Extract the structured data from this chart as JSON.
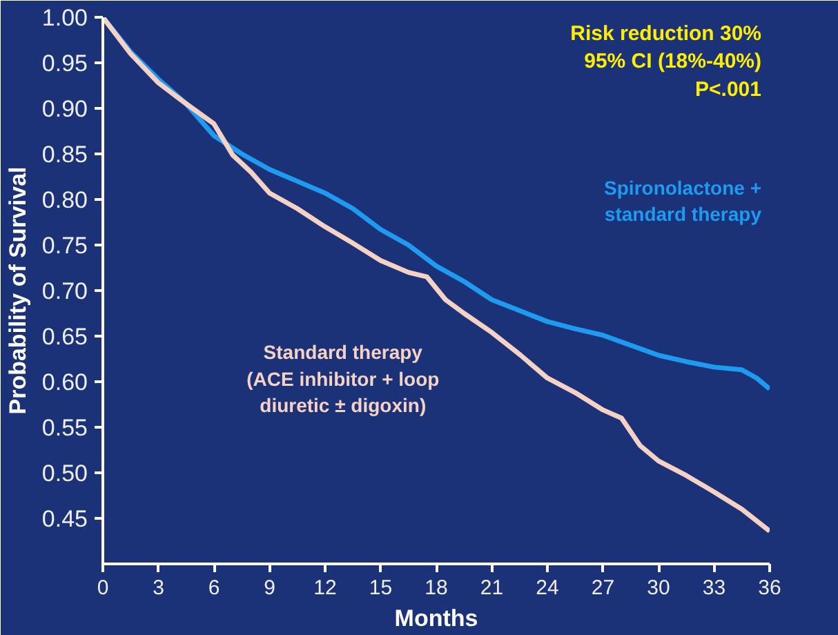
{
  "chart_data": {
    "type": "line",
    "xlabel": "Months",
    "ylabel": "Probability of Survival",
    "annotations": [
      "Risk reduction 30%\n95% CI (18%-40%)\nP<.001"
    ],
    "series": [
      {
        "name": "Spironolactone +\nstandard therapy",
        "color": "#1e9bf0",
        "x": [
          0,
          1.5,
          3,
          4.5,
          6,
          7.5,
          9,
          10.5,
          12,
          13.5,
          15,
          16.5,
          18,
          19.5,
          21,
          22.5,
          24,
          25.5,
          27,
          28.5,
          30,
          31.5,
          33,
          34.5,
          35.3,
          36
        ],
        "values": [
          1.0,
          0.962,
          0.932,
          0.905,
          0.87,
          0.85,
          0.833,
          0.82,
          0.807,
          0.79,
          0.767,
          0.75,
          0.727,
          0.71,
          0.69,
          0.678,
          0.666,
          0.658,
          0.651,
          0.64,
          0.629,
          0.622,
          0.616,
          0.613,
          0.604,
          0.592
        ]
      },
      {
        "name": "Standard therapy\n(ACE inhibitor + loop\ndiuretic ± digoxin)",
        "color": "#f5d2c3",
        "x": [
          0,
          1.5,
          3,
          4.5,
          6,
          7,
          8,
          9,
          10.5,
          12,
          13.5,
          15,
          16.5,
          17.5,
          18.5,
          19.5,
          21,
          22.5,
          24,
          25.5,
          27,
          28,
          29,
          30,
          31.5,
          33,
          34.5,
          36
        ],
        "values": [
          1.0,
          0.96,
          0.928,
          0.905,
          0.883,
          0.849,
          0.83,
          0.807,
          0.79,
          0.77,
          0.752,
          0.733,
          0.72,
          0.715,
          0.69,
          0.675,
          0.654,
          0.63,
          0.604,
          0.588,
          0.569,
          0.56,
          0.53,
          0.513,
          0.497,
          0.479,
          0.46,
          0.436
        ]
      }
    ],
    "xlim": [
      0,
      36
    ],
    "ylim": [
      0.4,
      1.0
    ],
    "xticks": [
      0,
      3,
      6,
      9,
      12,
      15,
      18,
      21,
      24,
      27,
      30,
      33,
      36
    ],
    "yticks": [
      {
        "value": 0.45,
        "label": "0.45"
      },
      {
        "value": 0.5,
        "label": "0.50"
      },
      {
        "value": 0.55,
        "label": "0.55"
      },
      {
        "value": 0.6,
        "label": "0.60"
      },
      {
        "value": 0.65,
        "label": "0.65"
      },
      {
        "value": 0.7,
        "label": "0.70"
      },
      {
        "value": 0.75,
        "label": "0.75"
      },
      {
        "value": 0.8,
        "label": "0.80"
      },
      {
        "value": 0.85,
        "label": "0.85"
      },
      {
        "value": 0.9,
        "label": "0.90"
      },
      {
        "value": 0.95,
        "label": "0.95"
      },
      {
        "value": 1.0,
        "label": "1.00"
      }
    ],
    "grid": false,
    "marker": "none",
    "line_style": "solid"
  }
}
